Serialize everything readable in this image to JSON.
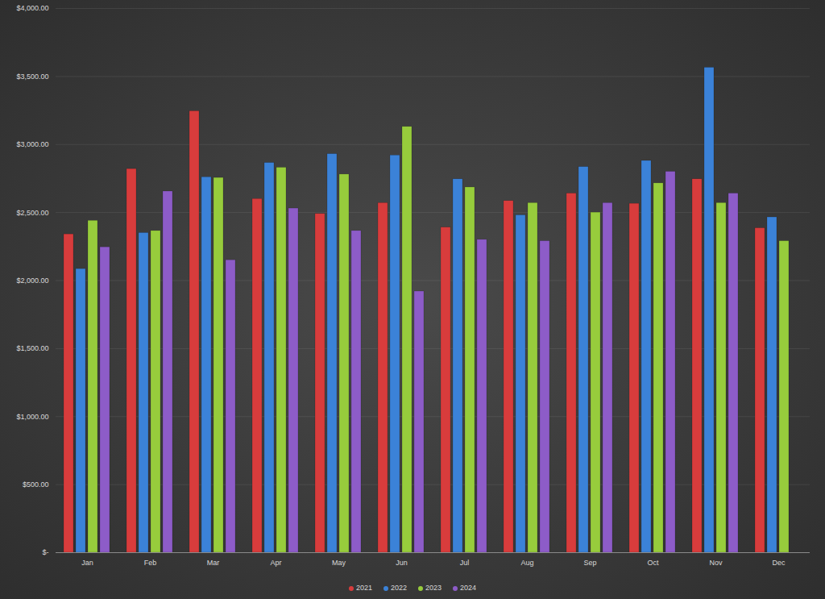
{
  "chart_data": {
    "type": "bar",
    "categories": [
      "Jan",
      "Feb",
      "Mar",
      "Apr",
      "May",
      "Jun",
      "Jul",
      "Aug",
      "Sep",
      "Oct",
      "Nov",
      "Dec"
    ],
    "series": [
      {
        "name": "2021",
        "color": "#d83c3c",
        "values": [
          2340,
          2820,
          3245,
          2600,
          2490,
          2570,
          2390,
          2585,
          2640,
          2565,
          2745,
          2385
        ]
      },
      {
        "name": "2022",
        "color": "#3b82d8",
        "values": [
          2085,
          2350,
          2760,
          2865,
          2930,
          2920,
          2745,
          2480,
          2835,
          2880,
          3565,
          2465
        ]
      },
      {
        "name": "2023",
        "color": "#97cc3c",
        "values": [
          2440,
          2365,
          2755,
          2830,
          2780,
          3130,
          2685,
          2570,
          2500,
          2715,
          2570,
          2290
        ]
      },
      {
        "name": "2024",
        "color": "#8d5cc8",
        "values": [
          2245,
          2655,
          2150,
          2530,
          2365,
          1920,
          2300,
          2290,
          2570,
          2800,
          2640,
          null
        ]
      }
    ],
    "ylim": [
      0,
      4000
    ],
    "yticks": [
      {
        "value": 0,
        "label": "$-"
      },
      {
        "value": 500,
        "label": "$500.00"
      },
      {
        "value": 1000,
        "label": "$1,000.00"
      },
      {
        "value": 1500,
        "label": "$1,500.00"
      },
      {
        "value": 2000,
        "label": "$2,000.00"
      },
      {
        "value": 2500,
        "label": "$2,500.00"
      },
      {
        "value": 3000,
        "label": "$3,000.00"
      },
      {
        "value": 3500,
        "label": "$3,500.00"
      },
      {
        "value": 4000,
        "label": "$4,000.00"
      }
    ],
    "grid": true,
    "legend": "bottom"
  }
}
